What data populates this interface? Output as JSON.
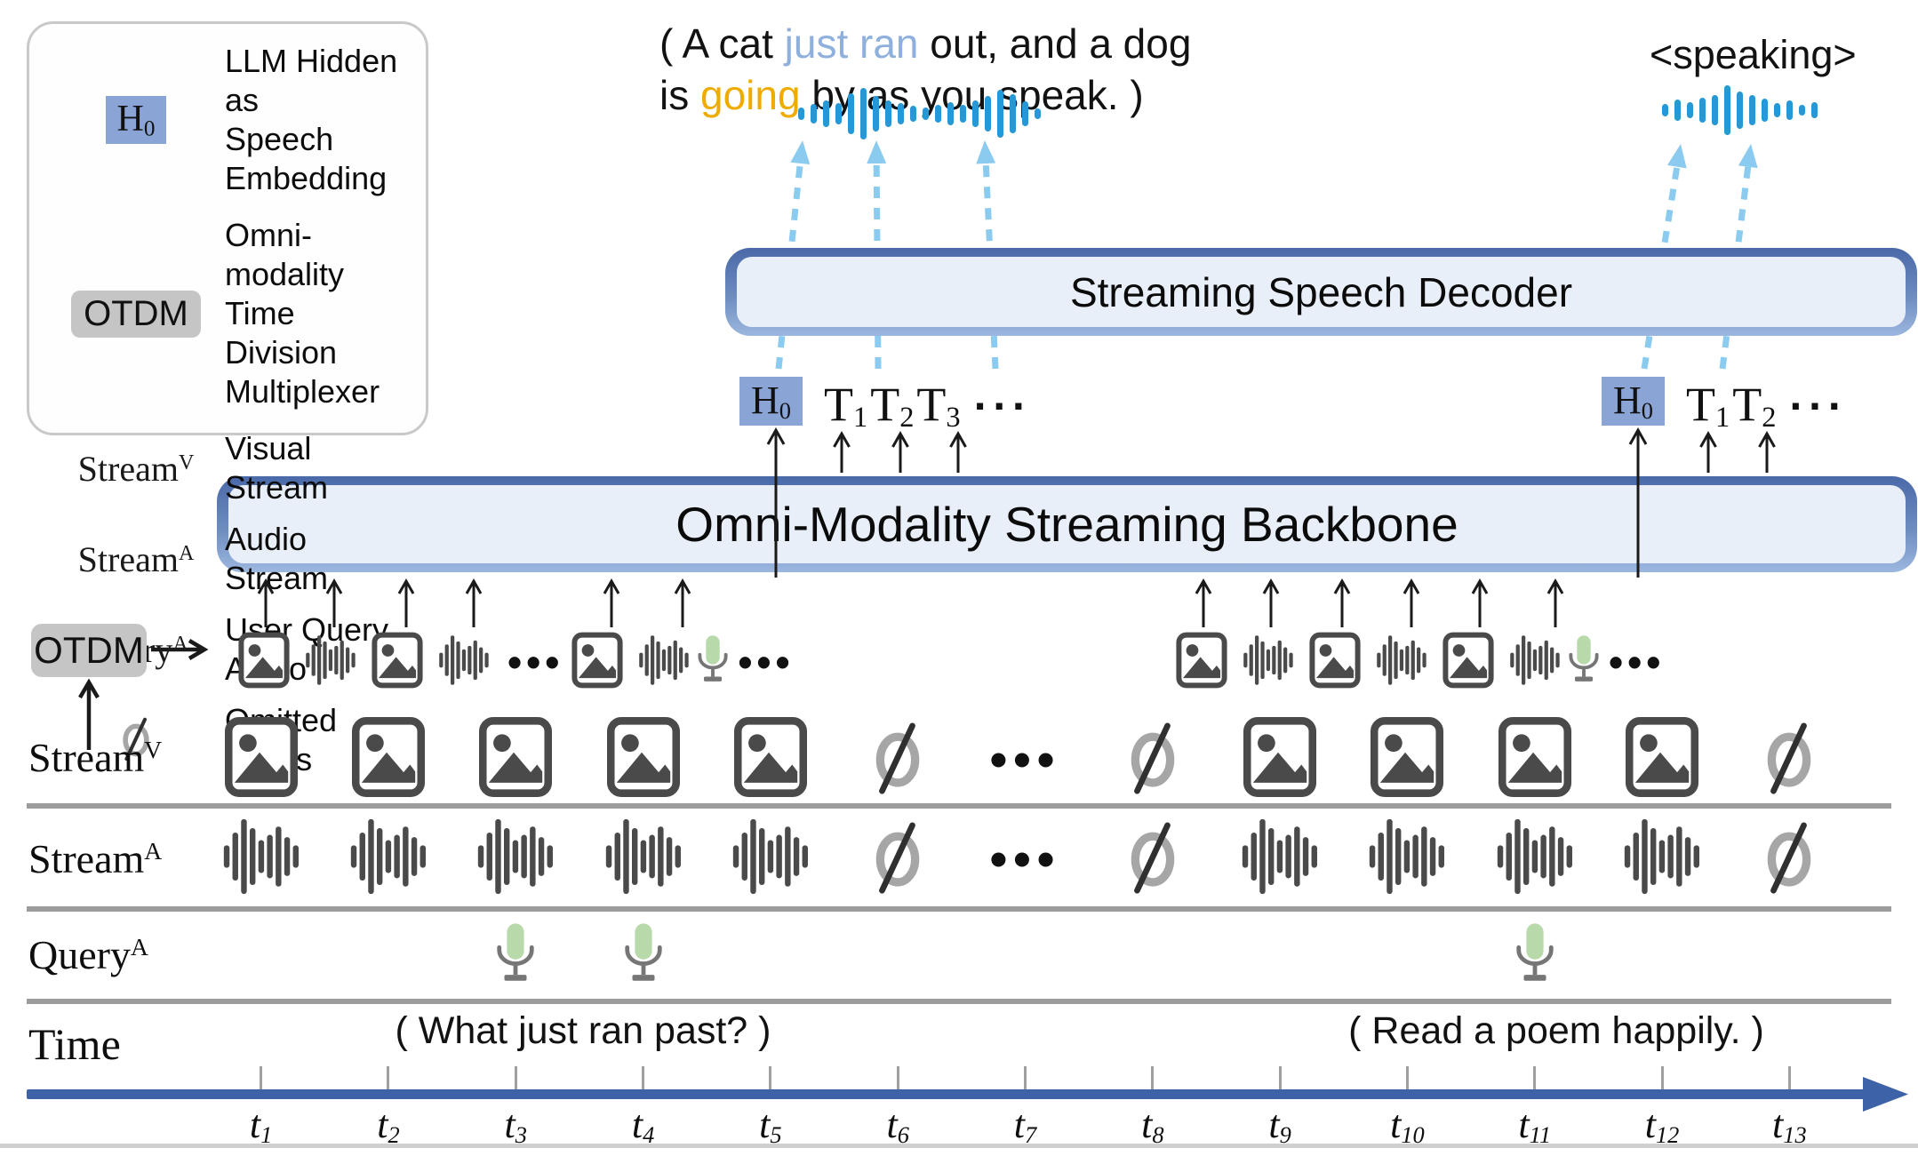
{
  "legend": {
    "items": [
      {
        "icon": "h0-chip",
        "key_base": "H",
        "key_sub": "0",
        "label_lines": [
          "LLM Hidden as",
          "Speech Embedding"
        ]
      },
      {
        "icon": "otdm-chip",
        "key": "OTDM",
        "label_lines": [
          "Omni-modality Time",
          "Division Multiplexer"
        ]
      },
      {
        "icon": "serif",
        "key_base": "Stream",
        "key_sup": "V",
        "label_lines": [
          "Visual Stream"
        ]
      },
      {
        "icon": "serif",
        "key_base": "Stream",
        "key_sup": "A",
        "label_lines": [
          "Audio Stream"
        ]
      },
      {
        "icon": "serif",
        "key_base": "Query",
        "key_sup": "A",
        "label_lines": [
          "User Query Audio"
        ]
      },
      {
        "icon": "null",
        "label_lines": [
          "Omitted Inputs"
        ]
      }
    ]
  },
  "speech_output_left": {
    "lines": [
      [
        {
          "t": "( A cat ",
          "c": "black"
        },
        {
          "t": "just ran",
          "c": "blue"
        },
        {
          "t": " out, and a dog",
          "c": "black"
        }
      ],
      [
        {
          "t": "is ",
          "c": "black"
        },
        {
          "t": "going",
          "c": "amber"
        },
        {
          "t": " by as you speak. )",
          "c": "black"
        }
      ]
    ]
  },
  "speech_output_right": {
    "tag": "<speaking>"
  },
  "decoder": {
    "label": "Streaming Speech Decoder"
  },
  "backbone": {
    "label": "Omni-Modality Streaming Backbone"
  },
  "otdm_box": {
    "label": "OTDM"
  },
  "tokens_left": {
    "h_base": "H",
    "h_sub": "0",
    "tokens": [
      {
        "base": "T",
        "sub": "1"
      },
      {
        "base": "T",
        "sub": "2"
      },
      {
        "base": "T",
        "sub": "3"
      }
    ]
  },
  "tokens_right": {
    "h_base": "H",
    "h_sub": "0",
    "tokens": [
      {
        "base": "T",
        "sub": "1"
      },
      {
        "base": "T",
        "sub": "2"
      }
    ]
  },
  "otdm_sequence_left": [
    "image",
    "audio",
    "image",
    "audio",
    "dots",
    "image",
    "audio",
    "mic",
    "dots"
  ],
  "otdm_sequence_right": [
    "image",
    "audio",
    "image",
    "audio",
    "image",
    "audio",
    "mic",
    "dots"
  ],
  "streams": {
    "visual": {
      "label_base": "Stream",
      "label_sup": "V",
      "cells": [
        "image",
        "image",
        "image",
        "image",
        "image",
        "null",
        "dots",
        "null",
        "image",
        "image",
        "image",
        "image",
        "null"
      ]
    },
    "audio": {
      "label_base": "Stream",
      "label_sup": "A",
      "cells": [
        "audio",
        "audio",
        "audio",
        "audio",
        "audio",
        "null",
        "dots",
        "null",
        "audio",
        "audio",
        "audio",
        "audio",
        "null"
      ]
    },
    "query": {
      "label_base": "Query",
      "label_sup": "A",
      "cells": [
        "",
        "",
        "mic",
        "mic",
        "",
        "",
        "",
        "",
        "",
        "",
        "mic",
        "",
        ""
      ]
    }
  },
  "annotations": {
    "query_left": "( What just ran past? )",
    "query_right": "( Read a poem happily. )"
  },
  "time": {
    "label": "Time",
    "ticks": [
      {
        "base": "t",
        "sub": "1"
      },
      {
        "base": "t",
        "sub": "2"
      },
      {
        "base": "t",
        "sub": "3"
      },
      {
        "base": "t",
        "sub": "4"
      },
      {
        "base": "t",
        "sub": "5"
      },
      {
        "base": "t",
        "sub": "6"
      },
      {
        "base": "t",
        "sub": "7"
      },
      {
        "base": "t",
        "sub": "8"
      },
      {
        "base": "t",
        "sub": "9"
      },
      {
        "base": "t",
        "sub": "10"
      },
      {
        "base": "t",
        "sub": "11"
      },
      {
        "base": "t",
        "sub": "12"
      },
      {
        "base": "t",
        "sub": "13"
      }
    ]
  },
  "glyphs": {
    "dots": "•••",
    "ellipsis": "···"
  },
  "colors": {
    "accent_blue": "#3e62a8",
    "bar_fill": "#e9eff8",
    "chip_blue": "#8aa5d5",
    "chip_gray": "#c5c5c5",
    "wave_blue": "#2798d6",
    "dashed_arrow": "#8ccbf0",
    "highlight_blue": "#8fb0dc",
    "highlight_amber": "#efac00",
    "mic_green": "#b8d9a9",
    "mic_stand": "#767676",
    "icon_gray": "#4a4a4a",
    "null_gray": "#a6a6a6",
    "null_slash": "#303030",
    "black_arrow": "#1a1a1a",
    "tick_gray": "#a0a0a0",
    "separator_gray": "#9c9c9c"
  }
}
